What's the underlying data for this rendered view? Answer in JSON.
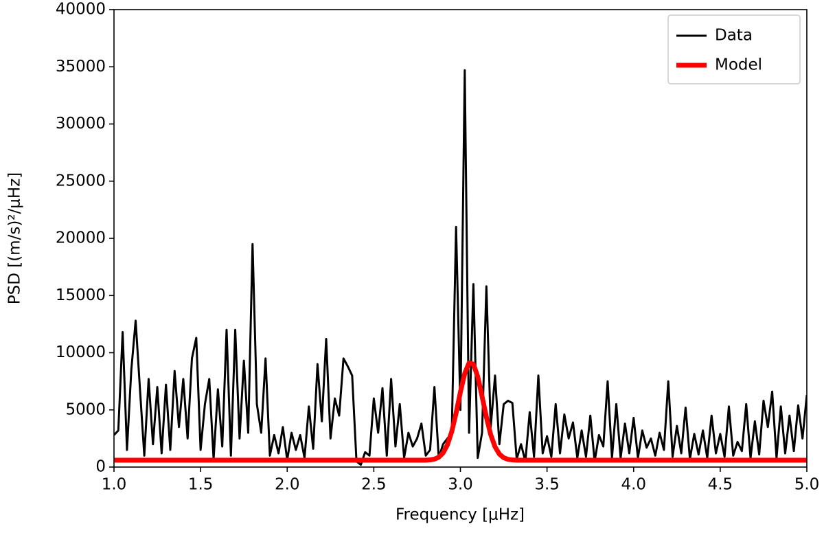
{
  "chart_data": {
    "type": "line",
    "xlabel": "Frequency [μHz]",
    "ylabel": "PSD [(m/s)²/μHz]",
    "x": [
      1.0,
      1.025,
      1.05,
      1.075,
      1.1,
      1.125,
      1.15,
      1.175,
      1.2,
      1.225,
      1.25,
      1.275,
      1.3,
      1.325,
      1.35,
      1.375,
      1.4,
      1.425,
      1.45,
      1.475,
      1.5,
      1.525,
      1.55,
      1.575,
      1.6,
      1.625,
      1.65,
      1.675,
      1.7,
      1.725,
      1.75,
      1.775,
      1.8,
      1.825,
      1.85,
      1.875,
      1.9,
      1.925,
      1.95,
      1.975,
      2.0,
      2.025,
      2.05,
      2.075,
      2.1,
      2.125,
      2.15,
      2.175,
      2.2,
      2.225,
      2.25,
      2.275,
      2.3,
      2.325,
      2.35,
      2.375,
      2.4,
      2.425,
      2.45,
      2.475,
      2.5,
      2.525,
      2.55,
      2.575,
      2.6,
      2.625,
      2.65,
      2.675,
      2.7,
      2.725,
      2.75,
      2.775,
      2.8,
      2.825,
      2.85,
      2.875,
      2.9,
      2.925,
      2.95,
      2.975,
      3.0,
      3.025,
      3.05,
      3.075,
      3.1,
      3.125,
      3.15,
      3.175,
      3.2,
      3.225,
      3.25,
      3.275,
      3.3,
      3.325,
      3.35,
      3.375,
      3.4,
      3.425,
      3.45,
      3.475,
      3.5,
      3.525,
      3.55,
      3.575,
      3.6,
      3.625,
      3.65,
      3.675,
      3.7,
      3.725,
      3.75,
      3.775,
      3.8,
      3.825,
      3.85,
      3.875,
      3.9,
      3.925,
      3.95,
      3.975,
      4.0,
      4.025,
      4.05,
      4.075,
      4.1,
      4.125,
      4.15,
      4.175,
      4.2,
      4.225,
      4.25,
      4.275,
      4.3,
      4.325,
      4.35,
      4.375,
      4.4,
      4.425,
      4.45,
      4.475,
      4.5,
      4.525,
      4.55,
      4.575,
      4.6,
      4.625,
      4.65,
      4.675,
      4.7,
      4.725,
      4.75,
      4.775,
      4.8,
      4.825,
      4.85,
      4.875,
      4.9,
      4.925,
      4.95,
      4.975,
      5.0
    ],
    "series": [
      {
        "name": "Data",
        "color": "#000000",
        "values": [
          2800,
          3200,
          11800,
          1500,
          8500,
          12800,
          6800,
          1000,
          7700,
          2000,
          7000,
          1200,
          7200,
          1500,
          8400,
          3500,
          7700,
          2500,
          9500,
          11300,
          1500,
          5500,
          7700,
          700,
          6800,
          1800,
          12000,
          1000,
          12000,
          2500,
          9300,
          3000,
          19500,
          5500,
          3000,
          9500,
          1000,
          2800,
          1200,
          3500,
          600,
          3000,
          1500,
          2800,
          800,
          5300,
          1600,
          9000,
          4000,
          11200,
          2500,
          6000,
          4500,
          9500,
          8800,
          8000,
          500,
          200,
          1300,
          1000,
          6000,
          3000,
          6900,
          1000,
          7700,
          1800,
          5500,
          800,
          3000,
          1800,
          2500,
          3800,
          1000,
          1500,
          7000,
          800,
          2000,
          2500,
          3000,
          21000,
          5000,
          34700,
          3000,
          16000,
          800,
          3000,
          15800,
          3500,
          8000,
          2000,
          5500,
          5800,
          5600,
          700,
          2000,
          500,
          4800,
          900,
          8000,
          1200,
          2700,
          900,
          5500,
          1200,
          4600,
          2500,
          3900,
          800,
          3200,
          900,
          4500,
          500,
          2800,
          1800,
          7500,
          800,
          5500,
          800,
          3800,
          1200,
          4300,
          800,
          3200,
          1700,
          2500,
          1000,
          3000,
          1500,
          7500,
          900,
          3600,
          1200,
          5200,
          700,
          2900,
          1100,
          3200,
          800,
          4500,
          1200,
          2900,
          900,
          5300,
          1000,
          2200,
          1400,
          5500,
          800,
          4000,
          1100,
          5800,
          3500,
          6600,
          800,
          5300,
          1200,
          4500,
          1400,
          5400,
          2500,
          6300
        ]
      },
      {
        "name": "Model",
        "color": "#ff0000",
        "values": [
          600,
          600,
          600,
          600,
          600,
          600,
          600,
          600,
          600,
          600,
          600,
          600,
          600,
          600,
          600,
          600,
          600,
          600,
          600,
          600,
          600,
          600,
          600,
          600,
          600,
          600,
          600,
          600,
          600,
          600,
          600,
          600,
          600,
          600,
          600,
          600,
          600,
          600,
          600,
          600,
          600,
          600,
          600,
          600,
          600,
          600,
          600,
          600,
          600,
          600,
          600,
          600,
          600,
          600,
          600,
          600,
          600,
          600,
          600,
          600,
          600,
          600,
          600,
          600,
          600,
          600,
          600,
          600,
          600,
          600,
          600,
          600,
          600,
          631,
          695,
          862,
          1231,
          1940,
          3102,
          4717,
          6558,
          8190,
          9112,
          9003,
          7904,
          6189,
          4362,
          2830,
          1764,
          1135,
          816,
          677,
          620,
          600,
          600,
          600,
          600,
          600,
          600,
          600,
          600,
          600,
          600,
          600,
          600,
          600,
          600,
          600,
          600,
          600,
          600,
          600,
          600,
          600,
          600,
          600,
          600,
          600,
          600,
          600,
          600,
          600,
          600,
          600,
          600,
          600,
          600,
          600,
          600,
          600,
          600,
          600,
          600,
          600,
          600,
          600,
          600,
          600,
          600,
          600,
          600,
          600,
          600,
          600,
          600,
          600,
          600,
          600,
          600,
          600,
          600,
          600,
          600,
          600,
          600,
          600,
          600,
          600,
          600,
          600,
          600
        ]
      }
    ],
    "xlim": [
      1.0,
      5.0
    ],
    "ylim": [
      0,
      40000
    ],
    "xticks": [
      {
        "value": 1.0,
        "label": "1.0"
      },
      {
        "value": 1.5,
        "label": "1.5"
      },
      {
        "value": 2.0,
        "label": "2.0"
      },
      {
        "value": 2.5,
        "label": "2.5"
      },
      {
        "value": 3.0,
        "label": "3.0"
      },
      {
        "value": 3.5,
        "label": "3.5"
      },
      {
        "value": 4.0,
        "label": "4.0"
      },
      {
        "value": 4.5,
        "label": "4.5"
      },
      {
        "value": 5.0,
        "label": "5.0"
      }
    ],
    "yticks": [
      0,
      5000,
      10000,
      15000,
      20000,
      25000,
      30000,
      35000,
      40000
    ],
    "legend": "upper right"
  }
}
